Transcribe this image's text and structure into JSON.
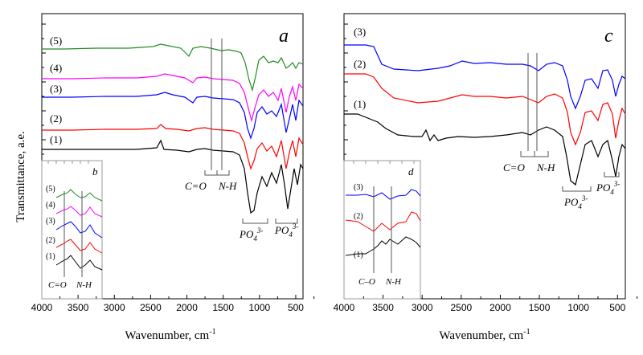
{
  "figure": {
    "ylabel": "Transmittance, a.e.",
    "xlabel_main": "Wavenumber, cm",
    "xlabel_sup": "-1"
  },
  "chart_data": [
    {
      "panel": "a",
      "type": "line",
      "x_range": [
        4000,
        400
      ],
      "ticks": [
        4000,
        3500,
        3000,
        2500,
        2000,
        1500,
        1000,
        500
      ],
      "tick_labels": [
        "4000",
        "3500",
        "3000",
        "2500",
        "2000",
        "1500",
        "1000",
        "500"
      ],
      "series": [
        {
          "name": "(5)",
          "color": "#228B22"
        },
        {
          "name": "(4)",
          "color": "#FF00FF"
        },
        {
          "name": "(3)",
          "color": "#0000FF"
        },
        {
          "name": "(2)",
          "color": "#FF0000"
        },
        {
          "name": "(1)",
          "color": "#000000"
        }
      ],
      "annotations": {
        "co": "C=O",
        "nh": "N-H",
        "po4_a": "PO",
        "po4_b": "PO",
        "po4_sub": "4",
        "po4_sup": "3-"
      },
      "inset": {
        "label": "b",
        "series": [
          "(5)",
          "(4)",
          "(3)",
          "(2)",
          "(1)"
        ],
        "co": "C=O",
        "nh": "N-H"
      }
    },
    {
      "panel": "c",
      "type": "line",
      "x_range": [
        4000,
        400
      ],
      "ticks": [
        4000,
        3500,
        3000,
        2500,
        2000,
        1500,
        1000,
        500
      ],
      "tick_labels": [
        "4000",
        "3500",
        "3000",
        "2500",
        "2000",
        "1500",
        "1000",
        "500"
      ],
      "series": [
        {
          "name": "(3)",
          "color": "#0000FF"
        },
        {
          "name": "(2)",
          "color": "#FF0000"
        },
        {
          "name": "(1)",
          "color": "#000000"
        }
      ],
      "annotations": {
        "co": "C=O",
        "nh": "N-H",
        "po4_a": "PO",
        "po4_b": "PO",
        "po4_sub": "4",
        "po4_sup": "3-"
      },
      "inset": {
        "label": "d",
        "series": [
          "(3)",
          "(2)",
          "(1)"
        ],
        "co": "C–O",
        "nh": "N-H"
      }
    }
  ]
}
